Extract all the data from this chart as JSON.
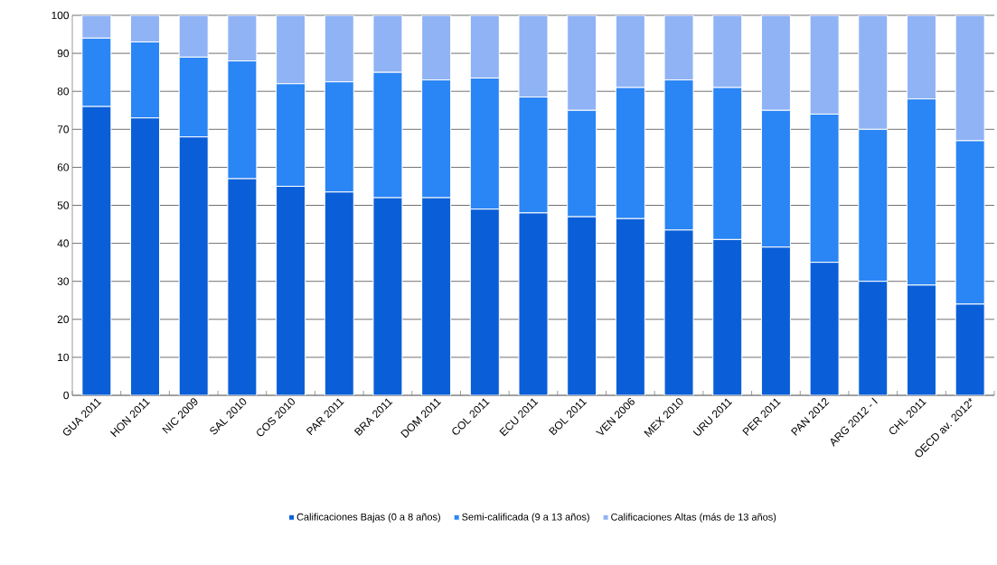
{
  "chart_data": {
    "type": "bar",
    "stacked": true,
    "categories": [
      "GUA 2011",
      "HON 2011",
      "NIC 2009",
      "SAL 2010",
      "COS 2010",
      "PAR 2011",
      "BRA 2011",
      "DOM 2011",
      "COL 2011",
      "ECU 2011",
      "BOL 2011",
      "VEN 2006",
      "MEX 2010",
      "URU 2011",
      "PER 2011",
      "PAN 2012",
      "ARG 2012 - I",
      "CHL 2011",
      "OECD av. 2012*"
    ],
    "series": [
      {
        "name": "Calificaciones Bajas (0 a 8 años)",
        "color": "#0a5fd8",
        "values": [
          76,
          73,
          68,
          57,
          55,
          53.5,
          52,
          52,
          49,
          48,
          47,
          46.5,
          43.5,
          41,
          39,
          35,
          30,
          29,
          24
        ]
      },
      {
        "name": "Semi-calificada (9 a 13 años)",
        "color": "#2a85f5",
        "values": [
          18,
          20,
          21,
          31,
          27,
          29,
          33,
          31,
          34.5,
          30.5,
          28,
          34.5,
          39.5,
          40,
          36,
          39,
          40,
          49,
          43
        ]
      },
      {
        "name": "Calificaciones Altas (más de 13 años)",
        "color": "#8fb3f5",
        "values": [
          6,
          7,
          11,
          12,
          18,
          17.5,
          15,
          17,
          16.5,
          21.5,
          25,
          19,
          17,
          19,
          25,
          26,
          30,
          22,
          33
        ]
      }
    ],
    "ylim": [
      0,
      100
    ],
    "yticks": [
      0,
      10,
      20,
      30,
      40,
      50,
      60,
      70,
      80,
      90,
      100
    ],
    "grid": "y",
    "legend": "bottom"
  }
}
